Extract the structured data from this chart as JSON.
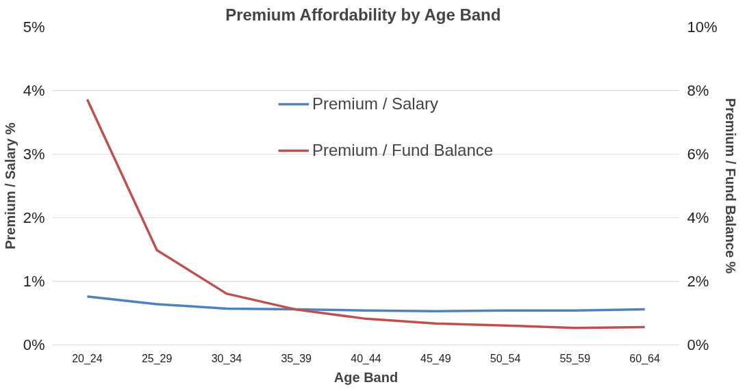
{
  "chart_data": {
    "type": "line",
    "title": "Premium Affordability  by Age Band",
    "xlabel": "Age Band",
    "ylabel": "Premium / Salary %",
    "y2label": "Premium / Fund Balance %",
    "categories": [
      "20_24",
      "25_29",
      "30_34",
      "35_39",
      "40_44",
      "45_49",
      "50_54",
      "55_59",
      "60_64"
    ],
    "series": [
      {
        "name": "Premium / Salary",
        "color": "#4f81bd",
        "values": [
          0.76,
          0.64,
          0.57,
          0.56,
          0.54,
          0.53,
          0.54,
          0.54,
          0.56
        ]
      },
      {
        "name": "Premium / Fund Balance",
        "color": "#c0504d",
        "axis": "y2",
        "values": [
          7.72,
          2.98,
          1.61,
          1.11,
          0.82,
          0.67,
          0.61,
          0.53,
          0.56
        ]
      }
    ],
    "ylim": [
      0,
      5
    ],
    "yticks": [
      {
        "value": 0,
        "label": "0%"
      },
      {
        "value": 1,
        "label": "1%"
      },
      {
        "value": 2,
        "label": "2%"
      },
      {
        "value": 3,
        "label": "3%"
      },
      {
        "value": 4,
        "label": "4%"
      },
      {
        "value": 5,
        "label": "5%"
      }
    ],
    "y2lim": [
      0,
      10
    ],
    "y2ticks": [
      {
        "value": 0,
        "label": "0%"
      },
      {
        "value": 2,
        "label": "2%"
      },
      {
        "value": 4,
        "label": "4%"
      },
      {
        "value": 6,
        "label": "6%"
      },
      {
        "value": 8,
        "label": "8%"
      },
      {
        "value": 10,
        "label": "10%"
      }
    ],
    "grid": "y",
    "legend": "top",
    "marker": "none",
    "line_style": "solid"
  }
}
